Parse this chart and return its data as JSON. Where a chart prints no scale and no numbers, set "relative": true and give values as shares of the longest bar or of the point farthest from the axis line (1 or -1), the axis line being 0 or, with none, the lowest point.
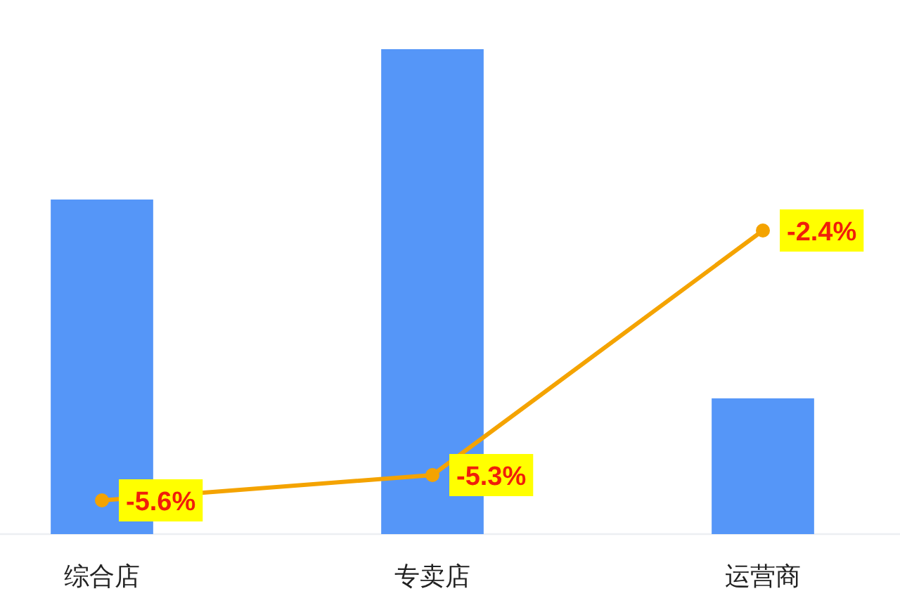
{
  "chart_data": [
    {
      "type": "bar",
      "relative": true,
      "categories": [
        "综合店",
        "专卖店",
        "运营商"
      ],
      "color": "#5596f8",
      "values": [
        0.69,
        1,
        0.28
      ],
      "tick_labels": "x"
    },
    {
      "type": "line",
      "categories": [
        null,
        null,
        null
      ],
      "color": "#f4a300",
      "values": [
        -5.6,
        -5.3,
        -2.4
      ],
      "value_labels": [
        "-5.6%",
        "-5.3%",
        "-2.4%"
      ],
      "marker": "circle",
      "tick_labels": false
    }
  ]
}
